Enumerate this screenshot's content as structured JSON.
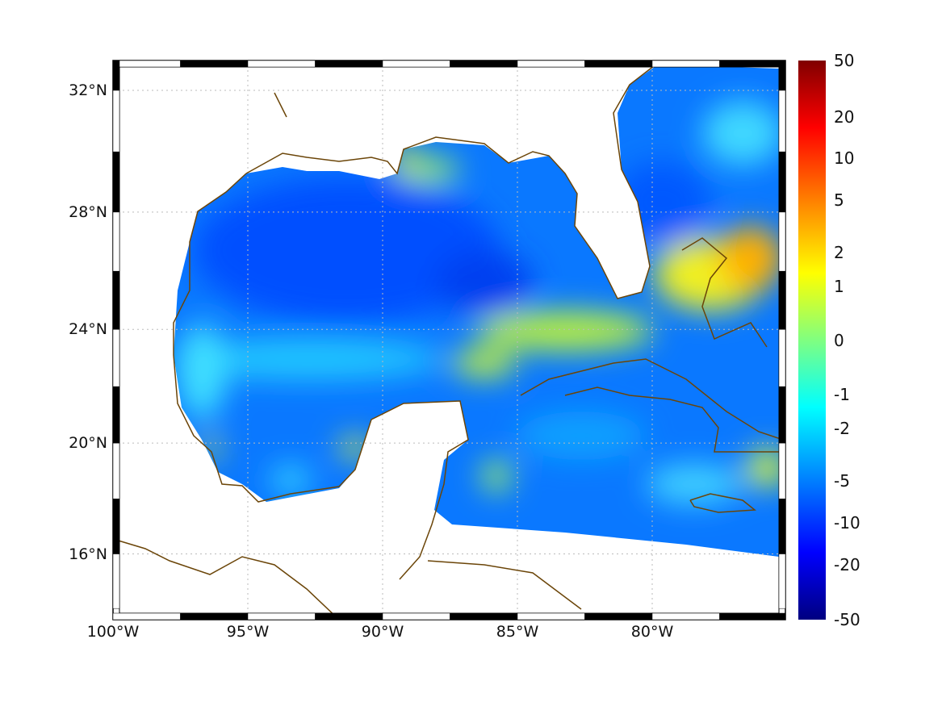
{
  "map": {
    "lon_ticks": [
      {
        "value": -100,
        "label": "100°W"
      },
      {
        "value": -95,
        "label": "95°W"
      },
      {
        "value": -90,
        "label": "90°W"
      },
      {
        "value": -85,
        "label": "85°W"
      },
      {
        "value": -80,
        "label": "80°W"
      }
    ],
    "lat_ticks": [
      {
        "value": 32,
        "label": "32°N"
      },
      {
        "value": 28,
        "label": "28°N"
      },
      {
        "value": 24,
        "label": "24°N"
      },
      {
        "value": 20,
        "label": "20°N"
      },
      {
        "value": 16,
        "label": "16°N"
      }
    ],
    "lon_range": [
      -100,
      -75.05
    ],
    "lat_range": [
      14.3,
      33.0
    ],
    "coast_color": "#6b4508",
    "grid": "dotted"
  },
  "colorbar": {
    "colormap": "jet",
    "labels": [
      "50",
      "20",
      "10",
      "5",
      "2",
      "1",
      "0",
      "-1",
      "-2",
      "-5",
      "-10",
      "-20",
      "-50"
    ]
  }
}
